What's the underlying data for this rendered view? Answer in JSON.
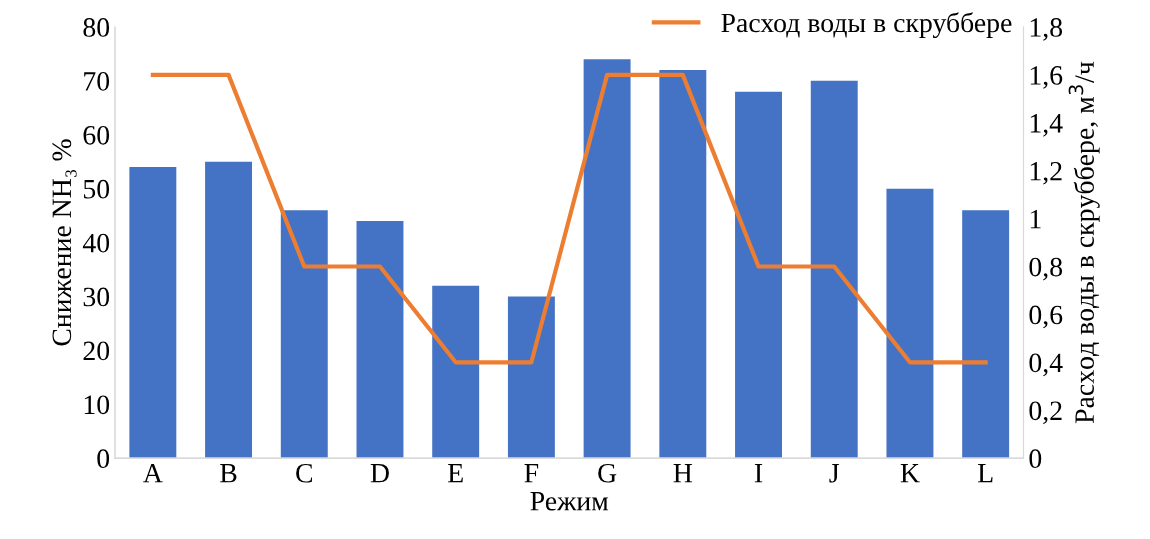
{
  "chart_data": {
    "type": "bar",
    "xlabel": "Режим",
    "ylabel": "Снижение NH₃ %",
    "y2label": "Расход воды в скруббере, м$^{3}$/ч",
    "categories": [
      "A",
      "B",
      "C",
      "D",
      "E",
      "F",
      "G",
      "H",
      "I",
      "J",
      "K",
      "L"
    ],
    "series": [
      {
        "color": "#4472c4",
        "values": [
          54,
          55,
          46,
          44,
          32,
          30,
          74,
          72,
          68,
          70,
          50,
          46
        ]
      },
      {
        "type": "line",
        "name": "Расход воды в скруббере",
        "color": "#ed7d31",
        "axis": "y2",
        "values": [
          1.6,
          1.6,
          0.8,
          0.8,
          0.4,
          0.4,
          1.6,
          1.6,
          0.8,
          0.8,
          0.4,
          0.4
        ]
      }
    ],
    "ylim": [
      0,
      80
    ],
    "yticks": [
      0,
      10,
      20,
      30,
      40,
      50,
      60,
      70,
      80
    ],
    "y2lim": [
      0,
      1.8
    ],
    "y2ticks": [
      0,
      {
        "value": 0.2,
        "label": "0,2"
      },
      {
        "value": 0.4,
        "label": "0,4"
      },
      {
        "value": 0.6,
        "label": "0,6"
      },
      {
        "value": 0.8,
        "label": "0,8"
      },
      1,
      {
        "value": 1.2,
        "label": "1,2"
      },
      {
        "value": 1.4,
        "label": "1,4"
      },
      {
        "value": 1.6,
        "label": "1,6"
      },
      {
        "value": 1.8,
        "label": "1,8"
      }
    ],
    "grid": false,
    "legend": "top right",
    "marker": "none",
    "line_style": "solid"
  }
}
